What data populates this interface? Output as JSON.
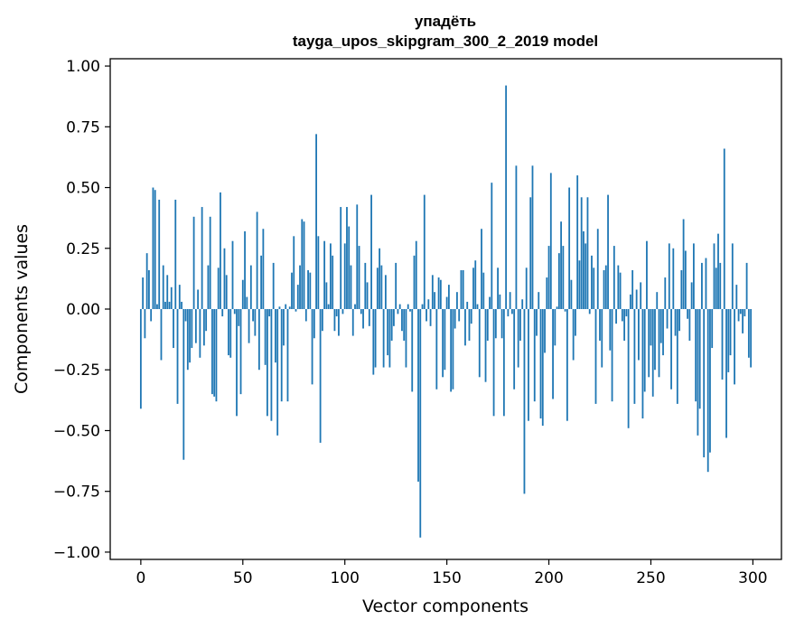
{
  "chart_data": {
    "type": "bar",
    "title": "упадёть",
    "subtitle": "tayga_upos_skipgram_300_2_2019 model",
    "xlabel": "Vector components",
    "ylabel": "Components values",
    "xlim": [
      -15,
      314
    ],
    "ylim": [
      -1.03,
      1.03
    ],
    "xticks": [
      0,
      50,
      100,
      150,
      200,
      250,
      300
    ],
    "yticks": [
      1.0,
      0.75,
      0.5,
      0.25,
      0.0,
      -0.25,
      -0.5,
      -0.75,
      -1.0
    ],
    "ytick_labels": [
      "1.00",
      "0.75",
      "0.50",
      "0.25",
      "0.00",
      "−0.25",
      "−0.50",
      "−0.75",
      "−1.00"
    ],
    "grid": false,
    "bar_color": "#1f77b4",
    "series": [
      {
        "values": [
          -0.41,
          0.13,
          -0.12,
          0.23,
          0.16,
          -0.05,
          0.5,
          0.49,
          0.02,
          0.45,
          -0.21,
          0.18,
          0.03,
          0.14,
          0.03,
          0.09,
          -0.16,
          0.45,
          -0.39,
          0.1,
          0.03,
          -0.62,
          -0.05,
          -0.25,
          -0.22,
          -0.16,
          0.38,
          -0.14,
          0.08,
          -0.2,
          0.42,
          -0.15,
          -0.09,
          0.18,
          0.38,
          -0.35,
          -0.36,
          -0.38,
          0.17,
          0.48,
          -0.03,
          0.25,
          0.14,
          -0.19,
          -0.2,
          0.28,
          -0.02,
          -0.44,
          -0.07,
          -0.35,
          0.12,
          0.32,
          0.05,
          -0.14,
          0.18,
          -0.05,
          -0.11,
          0.4,
          -0.25,
          0.22,
          0.33,
          -0.23,
          -0.44,
          -0.03,
          -0.46,
          0.19,
          -0.22,
          -0.52,
          0.01,
          -0.38,
          -0.15,
          0.02,
          -0.38,
          0.01,
          0.15,
          0.3,
          -0.01,
          0.1,
          0.18,
          0.37,
          0.36,
          -0.05,
          0.16,
          0.15,
          -0.31,
          -0.12,
          0.72,
          0.3,
          -0.55,
          -0.09,
          0.28,
          0.11,
          0.02,
          0.27,
          0.22,
          -0.09,
          -0.03,
          -0.11,
          0.42,
          -0.02,
          0.27,
          0.42,
          0.34,
          0.18,
          -0.11,
          0.02,
          0.43,
          0.26,
          -0.02,
          -0.08,
          0.19,
          0.11,
          -0.07,
          0.47,
          -0.27,
          -0.24,
          0.17,
          0.25,
          0.18,
          -0.24,
          0.14,
          -0.19,
          -0.24,
          -0.13,
          -0.07,
          0.19,
          -0.02,
          0.02,
          -0.09,
          -0.13,
          -0.24,
          0.02,
          -0.01,
          -0.34,
          0.22,
          0.28,
          -0.71,
          -0.94,
          0.02,
          0.47,
          -0.05,
          0.04,
          -0.07,
          0.14,
          0.07,
          -0.33,
          0.13,
          0.12,
          -0.28,
          -0.25,
          0.05,
          0.1,
          -0.34,
          -0.33,
          -0.08,
          0.07,
          -0.05,
          0.16,
          0.16,
          -0.15,
          0.03,
          -0.13,
          -0.06,
          0.17,
          0.2,
          0.02,
          -0.28,
          0.33,
          0.15,
          -0.3,
          -0.13,
          0.05,
          0.52,
          -0.44,
          -0.12,
          0.17,
          0.06,
          -0.12,
          -0.44,
          0.92,
          -0.03,
          0.07,
          -0.02,
          -0.33,
          0.59,
          -0.24,
          -0.13,
          0.04,
          -0.76,
          0.17,
          -0.46,
          0.46,
          0.59,
          -0.38,
          -0.11,
          0.07,
          -0.45,
          -0.48,
          -0.18,
          0.13,
          0.26,
          0.56,
          -0.37,
          -0.15,
          0.01,
          0.23,
          0.36,
          0.26,
          -0.01,
          -0.46,
          0.5,
          0.12,
          -0.21,
          -0.11,
          0.55,
          0.2,
          0.46,
          0.32,
          0.27,
          0.46,
          -0.02,
          0.22,
          0.17,
          -0.39,
          0.33,
          -0.13,
          -0.24,
          0.16,
          0.18,
          0.47,
          -0.17,
          -0.38,
          0.26,
          -0.06,
          0.18,
          0.15,
          -0.05,
          -0.13,
          -0.03,
          -0.49,
          0.06,
          0.16,
          -0.39,
          0.08,
          -0.21,
          0.11,
          -0.45,
          -0.34,
          0.28,
          -0.28,
          -0.15,
          -0.36,
          -0.25,
          0.07,
          -0.28,
          -0.14,
          -0.19,
          0.13,
          -0.08,
          0.27,
          -0.33,
          0.25,
          -0.11,
          -0.39,
          -0.09,
          0.16,
          0.37,
          0.24,
          -0.04,
          -0.13,
          0.11,
          0.27,
          -0.38,
          -0.52,
          -0.41,
          0.19,
          -0.61,
          0.21,
          -0.67,
          -0.59,
          -0.16,
          0.27,
          0.17,
          0.31,
          0.19,
          -0.29,
          0.66,
          -0.53,
          -0.26,
          -0.19,
          0.27,
          -0.31,
          0.1,
          -0.05,
          -0.02,
          -0.1,
          -0.03,
          0.19,
          -0.2,
          -0.24
        ]
      }
    ]
  }
}
